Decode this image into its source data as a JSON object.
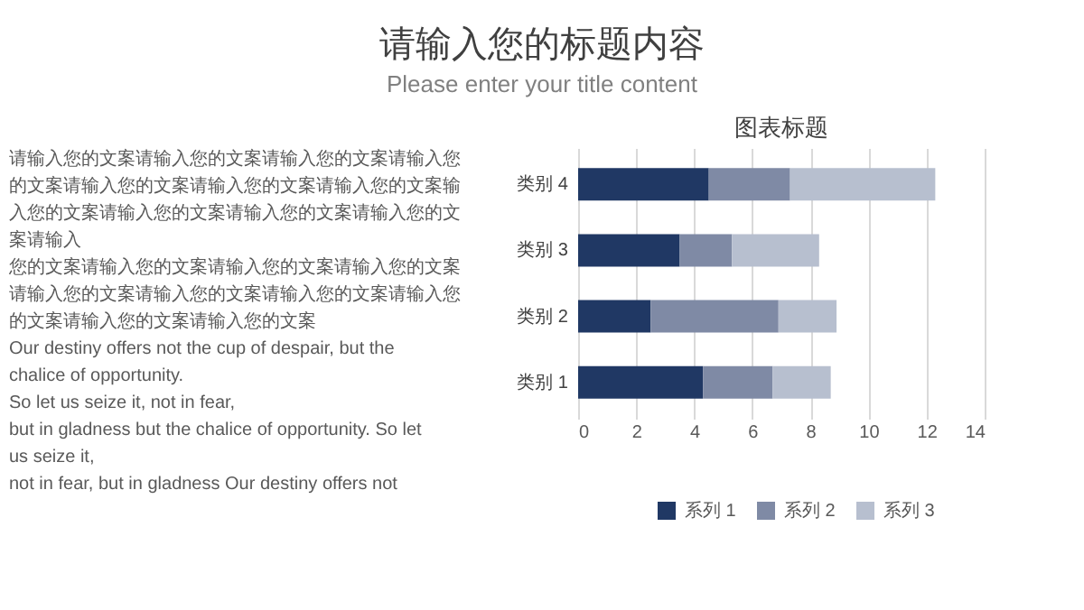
{
  "chart_data": {
    "type": "bar",
    "orientation": "horizontal",
    "stacked": true,
    "title": "图表标题",
    "categories": [
      "类别 4",
      "类别 3",
      "类别 2",
      "类别 1"
    ],
    "series": [
      {
        "name": "系列 1",
        "color": "#203864",
        "values": [
          4.5,
          3.5,
          2.5,
          4.3
        ]
      },
      {
        "name": "系列 2",
        "color": "#7f8aa5",
        "values": [
          2.8,
          1.8,
          4.4,
          2.4
        ]
      },
      {
        "name": "系列 3",
        "color": "#b7bfcf",
        "values": [
          5,
          3,
          2,
          2
        ]
      }
    ],
    "xlim": [
      0,
      14
    ],
    "xticks": [
      0,
      2,
      4,
      6,
      8,
      10,
      12,
      14
    ],
    "grid": "x",
    "legend": "bottom",
    "annotations": [
      "请输入您的标题内容",
      "Please enter your title content",
      "请输入您的文案请输入您的文案请输入您的文案请输入您",
      "的文案请输入您的文案请输入您的文案请输入您的文案输",
      "入您的文案请输入您的文案请输入您的文案请输入您的文",
      "案请输入",
      "您的文案请输入您的文案请输入您的文案请输入您的文案",
      "请输入您的文案请输入您的文案请输入您的文案请输入您",
      "的文案请输入您的文案请输入您的文案",
      "Our destiny offers not the cup of despair, but the",
      "chalice of opportunity.",
      "So let us seize it, not in fear,",
      "but in gladness but the chalice of opportunity. So let",
      "us seize it,",
      " not in fear, but in gladness Our destiny offers not"
    ]
  }
}
